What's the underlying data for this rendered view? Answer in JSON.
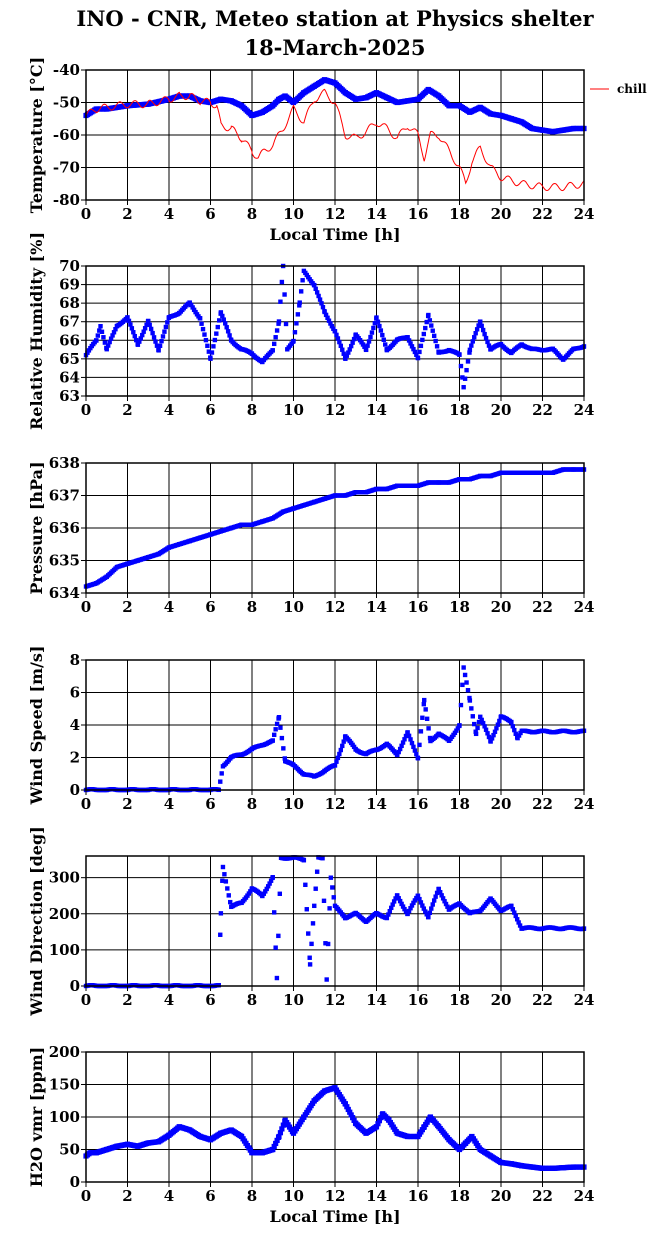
{
  "title_line1": "INO - CNR, Meteo station at Physics shelter",
  "title_line2": "18-March-2025",
  "colors": {
    "blue": "#0000ff",
    "red": "#ff0000",
    "grid": "#000000"
  },
  "chart_data": [
    {
      "type": "line",
      "ylabel": "Temperature [°C]",
      "xlabel": "Local Time [h]",
      "xlim": [
        0,
        24
      ],
      "ylim": [
        -80,
        -40
      ],
      "xticks": [
        0,
        2,
        4,
        6,
        8,
        10,
        12,
        14,
        16,
        18,
        20,
        22,
        24
      ],
      "yticks": [
        -80,
        -70,
        -60,
        -50,
        -40
      ],
      "grid": true,
      "legend": {
        "position": "right",
        "entries": [
          {
            "label": "chill",
            "color": "#ff0000"
          }
        ]
      },
      "series": [
        {
          "color": "#0000ff",
          "style": "thick",
          "x": [
            0,
            0.5,
            1,
            2,
            3,
            4,
            4.5,
            5,
            5.5,
            6,
            6.5,
            7,
            7.5,
            8,
            8.5,
            9,
            9.3,
            9.6,
            10,
            10.5,
            11,
            11.5,
            12,
            12.5,
            13,
            13.5,
            14,
            14.5,
            15,
            15.5,
            16,
            16.5,
            17,
            17.5,
            18,
            18.5,
            19,
            19.5,
            20,
            20.5,
            21,
            21.5,
            22,
            22.5,
            23,
            23.5,
            24
          ],
          "y": [
            -54,
            -52,
            -52,
            -51,
            -50.5,
            -49,
            -48,
            -48,
            -49.5,
            -50,
            -49,
            -49.5,
            -51,
            -54,
            -53,
            -51,
            -49,
            -48,
            -50,
            -47,
            -45,
            -43,
            -44,
            -47,
            -49,
            -48.5,
            -47,
            -48.5,
            -50,
            -49.5,
            -49,
            -46,
            -48,
            -51,
            -51,
            -53,
            -51.5,
            -53.5,
            -54,
            -55,
            -56,
            -58,
            -58.5,
            -59,
            -58.5,
            -58,
            -58
          ]
        },
        {
          "name": "chill",
          "color": "#ff0000",
          "style": "thin",
          "x": [
            0,
            0.5,
            1,
            2,
            3,
            4,
            4.5,
            5,
            5.5,
            6,
            6.3,
            6.5,
            7,
            7.5,
            8,
            8.3,
            8.6,
            9,
            9.5,
            10,
            10.5,
            11,
            11.5,
            12,
            12.5,
            13,
            13.5,
            14,
            14.5,
            15,
            15.5,
            16,
            16.3,
            16.6,
            17,
            17.5,
            18,
            18.3,
            18.6,
            19,
            19.5,
            20,
            20.5,
            21,
            22,
            23,
            24
          ],
          "y": [
            -54,
            -52,
            -51.5,
            -50.5,
            -50.5,
            -49,
            -48,
            -48,
            -49.5,
            -50,
            -51,
            -57,
            -58,
            -61,
            -65,
            -67,
            -65,
            -63,
            -58,
            -52,
            -56,
            -49,
            -47,
            -50,
            -60,
            -61,
            -59,
            -56,
            -58,
            -61,
            -57,
            -60,
            -67,
            -60,
            -60,
            -65,
            -70,
            -75,
            -68,
            -64,
            -70,
            -73,
            -74,
            -75,
            -76,
            -76,
            -75
          ]
        }
      ]
    },
    {
      "type": "scatter",
      "ylabel": "Relative Humidity [%]",
      "xlim": [
        0,
        24
      ],
      "ylim": [
        63,
        70
      ],
      "xticks": [
        0,
        2,
        4,
        6,
        8,
        10,
        12,
        14,
        16,
        18,
        20,
        22,
        24
      ],
      "yticks": [
        63,
        64,
        65,
        66,
        67,
        68,
        69,
        70
      ],
      "grid": true,
      "series": [
        {
          "color": "#0000ff",
          "x": [
            0,
            0.5,
            0.7,
            1,
            1.5,
            2,
            2.5,
            3,
            3.5,
            4,
            4.5,
            5,
            5.5,
            6,
            6.5,
            7,
            7.5,
            8,
            8.5,
            9,
            9.3,
            9.5,
            9.7,
            10,
            10.3,
            10.5,
            11,
            11.5,
            12,
            12.5,
            13,
            13.5,
            14,
            14.5,
            15,
            15.5,
            16,
            16.5,
            17,
            17.5,
            18,
            18.2,
            18.5,
            19,
            19.5,
            20,
            20.5,
            21,
            21.5,
            22,
            22.5,
            23,
            23.5,
            24
          ],
          "y": [
            65.2,
            66,
            66.8,
            65.5,
            66.8,
            67.2,
            65.8,
            67,
            65.5,
            67.2,
            67.5,
            68,
            67.2,
            65,
            67.5,
            66,
            65.5,
            65.3,
            64.8,
            65.5,
            67,
            70,
            65.5,
            66,
            68,
            69.7,
            69,
            67.5,
            66.5,
            65,
            66.3,
            65.5,
            67.2,
            65.5,
            66,
            66.2,
            65,
            67.4,
            65.3,
            65.5,
            65.2,
            63.5,
            65.5,
            67,
            65.5,
            65.8,
            65.3,
            65.8,
            65.5,
            65.5,
            65.5,
            65,
            65.5,
            65.7
          ]
        }
      ]
    },
    {
      "type": "scatter",
      "ylabel": "Pressure [hPa]",
      "xlim": [
        0,
        24
      ],
      "ylim": [
        634,
        638
      ],
      "xticks": [
        0,
        2,
        4,
        6,
        8,
        10,
        12,
        14,
        16,
        18,
        20,
        22,
        24
      ],
      "yticks": [
        634,
        635,
        636,
        637,
        638
      ],
      "grid": true,
      "series": [
        {
          "color": "#0000ff",
          "x": [
            0,
            0.5,
            1,
            1.5,
            2,
            2.5,
            3,
            3.5,
            4,
            4.5,
            5,
            5.5,
            6,
            6.5,
            7,
            7.5,
            8,
            8.5,
            9,
            9.5,
            10,
            10.5,
            11,
            11.5,
            12,
            12.5,
            13,
            13.5,
            14,
            14.5,
            15,
            15.5,
            16,
            16.5,
            17,
            17.5,
            18,
            18.5,
            19,
            19.5,
            20,
            20.5,
            21,
            21.5,
            22,
            22.5,
            23,
            23.5,
            24
          ],
          "y": [
            634.2,
            634.3,
            634.5,
            634.8,
            634.9,
            635,
            635.1,
            635.2,
            635.4,
            635.5,
            635.6,
            635.7,
            635.8,
            635.9,
            636,
            636.1,
            636.1,
            636.2,
            636.3,
            636.5,
            636.6,
            636.7,
            636.8,
            636.9,
            637,
            637,
            637.1,
            637.1,
            637.2,
            637.2,
            637.3,
            637.3,
            637.3,
            637.4,
            637.4,
            637.4,
            637.5,
            637.5,
            637.6,
            637.6,
            637.7,
            637.7,
            637.7,
            637.7,
            637.7,
            637.7,
            637.8,
            637.8,
            637.8
          ]
        }
      ]
    },
    {
      "type": "scatter",
      "ylabel": "Wind Speed [m/s]",
      "xlim": [
        0,
        24
      ],
      "ylim": [
        0,
        8
      ],
      "xticks": [
        0,
        2,
        4,
        6,
        8,
        10,
        12,
        14,
        16,
        18,
        20,
        22,
        24
      ],
      "yticks": [
        0,
        2,
        4,
        6,
        8
      ],
      "grid": true,
      "series": [
        {
          "color": "#0000ff",
          "x": [
            0,
            1,
            2,
            3,
            4,
            5,
            6,
            6.4,
            6.6,
            7,
            7.5,
            8,
            8.5,
            9,
            9.3,
            9.6,
            10,
            10.5,
            11,
            11.5,
            12,
            12.5,
            13,
            13.5,
            14,
            14.5,
            15,
            15.5,
            16,
            16.3,
            16.6,
            17,
            17.5,
            18,
            18.2,
            18.5,
            18.8,
            19,
            19.5,
            20,
            20.5,
            20.8,
            21,
            21.5,
            22,
            23,
            24
          ],
          "y": [
            0,
            0,
            0,
            0,
            0,
            0,
            0,
            0,
            1.5,
            2,
            2.2,
            2.5,
            2.8,
            3,
            4.5,
            1.8,
            1.5,
            1,
            0.8,
            1.2,
            1.5,
            3.3,
            2.5,
            2.2,
            2.5,
            2.8,
            2.2,
            3.5,
            2,
            5.5,
            3,
            3.5,
            3,
            4,
            7.5,
            5.5,
            3.5,
            4.5,
            3,
            4.5,
            4.2,
            3.2,
            3.6,
            3.6,
            3.6,
            3.6,
            3.6
          ]
        }
      ]
    },
    {
      "type": "scatter",
      "ylabel": "Wind Direction [deg]",
      "xlim": [
        0,
        24
      ],
      "ylim": [
        0,
        360
      ],
      "xticks": [
        0,
        2,
        4,
        6,
        8,
        10,
        12,
        14,
        16,
        18,
        20,
        22,
        24
      ],
      "yticks": [
        0,
        100,
        200,
        300
      ],
      "grid": true,
      "series": [
        {
          "color": "#0000ff",
          "x": [
            0,
            2,
            4,
            6,
            6.4,
            6.5,
            6.6,
            7,
            7.5,
            8,
            8.5,
            9,
            9.2,
            9.4,
            9.6,
            10,
            10.5,
            10.8,
            11,
            11.2,
            11.4,
            11.6,
            11.8,
            12,
            12.5,
            13,
            13.5,
            14,
            14.5,
            15,
            15.5,
            16,
            16.5,
            17,
            17.5,
            18,
            18.5,
            19,
            19.5,
            20,
            20.5,
            21,
            22,
            23,
            24
          ],
          "y": [
            0,
            0,
            0,
            0,
            0,
            200,
            330,
            220,
            230,
            270,
            250,
            300,
            20,
            355,
            355,
            355,
            350,
            60,
            220,
            355,
            355,
            20,
            300,
            220,
            190,
            200,
            180,
            200,
            190,
            250,
            200,
            250,
            190,
            270,
            210,
            230,
            200,
            210,
            240,
            210,
            220,
            160,
            160,
            160,
            160
          ]
        }
      ]
    },
    {
      "type": "line",
      "ylabel": "H2O vmr [ppm]",
      "xlabel": "Local Time [h]",
      "xlim": [
        0,
        24
      ],
      "ylim": [
        0,
        200
      ],
      "xticks": [
        0,
        2,
        4,
        6,
        8,
        10,
        12,
        14,
        16,
        18,
        20,
        22,
        24
      ],
      "yticks": [
        0,
        50,
        100,
        150,
        200
      ],
      "grid": true,
      "series": [
        {
          "color": "#0000ff",
          "style": "thick",
          "x": [
            0,
            0.2,
            0.5,
            1,
            1.5,
            2,
            2.5,
            3,
            3.5,
            4,
            4.5,
            5,
            5.5,
            6,
            6.5,
            7,
            7.5,
            8,
            8.5,
            9,
            9.3,
            9.6,
            10,
            10.5,
            11,
            11.5,
            12,
            12.5,
            13,
            13.5,
            14,
            14.3,
            14.6,
            15,
            15.5,
            16,
            16.3,
            16.6,
            17,
            17.5,
            18,
            18.3,
            18.6,
            19,
            19.5,
            20,
            20.5,
            21,
            21.5,
            22,
            22.5,
            23,
            23.5,
            24
          ],
          "y": [
            40,
            45,
            45,
            50,
            55,
            58,
            55,
            60,
            62,
            72,
            85,
            80,
            70,
            65,
            75,
            80,
            70,
            45,
            45,
            50,
            70,
            95,
            75,
            100,
            125,
            140,
            145,
            120,
            90,
            75,
            85,
            105,
            95,
            75,
            70,
            70,
            85,
            100,
            85,
            65,
            50,
            60,
            70,
            50,
            40,
            30,
            28,
            25,
            23,
            21,
            21,
            22,
            23,
            23
          ]
        }
      ]
    }
  ]
}
